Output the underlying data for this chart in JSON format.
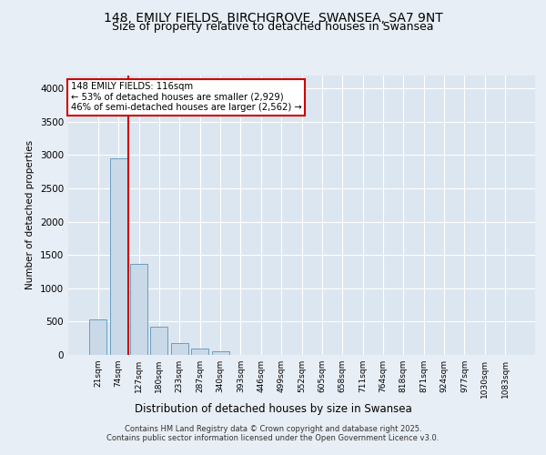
{
  "title_line1": "148, EMILY FIELDS, BIRCHGROVE, SWANSEA, SA7 9NT",
  "title_line2": "Size of property relative to detached houses in Swansea",
  "xlabel": "Distribution of detached houses by size in Swansea",
  "ylabel": "Number of detached properties",
  "categories": [
    "21sqm",
    "74sqm",
    "127sqm",
    "180sqm",
    "233sqm",
    "287sqm",
    "340sqm",
    "393sqm",
    "446sqm",
    "499sqm",
    "552sqm",
    "605sqm",
    "658sqm",
    "711sqm",
    "764sqm",
    "818sqm",
    "871sqm",
    "924sqm",
    "977sqm",
    "1030sqm",
    "1083sqm"
  ],
  "values": [
    530,
    2950,
    1370,
    430,
    175,
    90,
    60,
    0,
    0,
    0,
    0,
    0,
    0,
    0,
    0,
    0,
    0,
    0,
    0,
    0,
    0
  ],
  "bar_color": "#c9d9e8",
  "bar_edge_color": "#6a9dc0",
  "vline_color": "#cc0000",
  "annotation_text": "148 EMILY FIELDS: 116sqm\n← 53% of detached houses are smaller (2,929)\n46% of semi-detached houses are larger (2,562) →",
  "annotation_box_color": "#cc0000",
  "ylim": [
    0,
    4200
  ],
  "yticks": [
    0,
    500,
    1000,
    1500,
    2000,
    2500,
    3000,
    3500,
    4000
  ],
  "footer_line1": "Contains HM Land Registry data © Crown copyright and database right 2025.",
  "footer_line2": "Contains public sector information licensed under the Open Government Licence v3.0.",
  "fig_bg_color": "#e8eef5",
  "plot_bg_color": "#dce6f0"
}
